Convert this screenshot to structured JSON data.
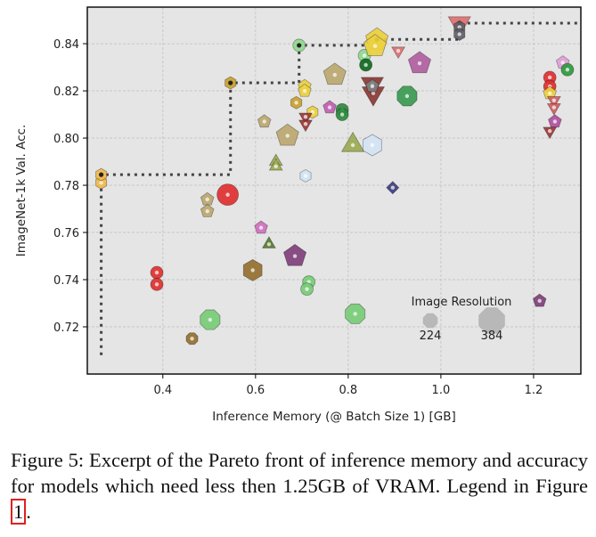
{
  "chart_data": {
    "type": "scatter",
    "xlabel": "Inference Memory (@ Batch Size 1) [GB]",
    "ylabel": "ImageNet-1k Val. Acc.",
    "xlim": [
      0.237,
      1.302
    ],
    "ylim": [
      0.7,
      0.8555
    ],
    "xticks": [
      0.4,
      0.6,
      0.8,
      1.0,
      1.2
    ],
    "xtick_labels": [
      "0.4",
      "0.6",
      "0.8",
      "1.0",
      "1.2"
    ],
    "yticks": [
      0.72,
      0.74,
      0.76,
      0.78,
      0.8,
      0.82,
      0.84
    ],
    "ytick_labels": [
      "0.72",
      "0.74",
      "0.76",
      "0.78",
      "0.80",
      "0.82",
      "0.84"
    ],
    "grid": true,
    "legend": {
      "title": "Image Resolution",
      "entries": [
        "224",
        "384"
      ],
      "placement": "bottom-right"
    },
    "pareto_front": [
      [
        0.267,
        0.708
      ],
      [
        0.267,
        0.7845
      ],
      [
        0.546,
        0.7845
      ],
      [
        0.546,
        0.8234
      ],
      [
        0.694,
        0.8234
      ],
      [
        0.694,
        0.8393
      ],
      [
        0.84,
        0.8393
      ],
      [
        0.84,
        0.8418
      ],
      [
        1.04,
        0.8418
      ],
      [
        1.04,
        0.8487
      ],
      [
        1.302,
        0.8487
      ]
    ],
    "points": [
      {
        "x": 0.267,
        "y": 0.7811,
        "c": "#f0b84a",
        "s": "hex",
        "r": 224
      },
      {
        "x": 0.267,
        "y": 0.7845,
        "c": "#f0b84a",
        "s": "hex",
        "r": 224,
        "p": 1
      },
      {
        "x": 0.546,
        "y": 0.8234,
        "c": "#c9a030",
        "s": "hex",
        "r": 224,
        "p": 1
      },
      {
        "x": 0.694,
        "y": 0.8393,
        "c": "#8fd88f",
        "s": "circle",
        "r": 224,
        "p": 1
      },
      {
        "x": 0.771,
        "y": 0.8268,
        "c": "#bca870",
        "s": "pent",
        "r": 384
      },
      {
        "x": 0.706,
        "y": 0.822,
        "c": "#ecd040",
        "s": "pent",
        "r": 224
      },
      {
        "x": 0.706,
        "y": 0.82,
        "c": "#ecd040",
        "s": "pent",
        "r": 224
      },
      {
        "x": 0.688,
        "y": 0.815,
        "c": "#c9a030",
        "s": "hex",
        "r": 224
      },
      {
        "x": 0.723,
        "y": 0.811,
        "c": "#ecd040",
        "s": "hex",
        "r": 224
      },
      {
        "x": 0.708,
        "y": 0.809,
        "c": "#9b3a38",
        "s": "tridown",
        "r": 224
      },
      {
        "x": 0.708,
        "y": 0.806,
        "c": "#9b3a38",
        "s": "tridown",
        "r": 224
      },
      {
        "x": 0.76,
        "y": 0.813,
        "c": "#c060b0",
        "s": "pent",
        "r": 224
      },
      {
        "x": 0.787,
        "y": 0.812,
        "c": "#2e8a3e",
        "s": "circle",
        "r": 224
      },
      {
        "x": 0.787,
        "y": 0.81,
        "c": "#2e8a3e",
        "s": "circle",
        "r": 224
      },
      {
        "x": 0.619,
        "y": 0.807,
        "c": "#bca870",
        "s": "pent",
        "r": 224
      },
      {
        "x": 0.669,
        "y": 0.801,
        "c": "#bca870",
        "s": "pent",
        "r": 384
      },
      {
        "x": 0.644,
        "y": 0.79,
        "c": "#9aaa50",
        "s": "tri",
        "r": 224
      },
      {
        "x": 0.644,
        "y": 0.788,
        "c": "#9aaa50",
        "s": "tri",
        "r": 224
      },
      {
        "x": 0.81,
        "y": 0.797,
        "c": "#9aaa50",
        "s": "tri",
        "r": 384
      },
      {
        "x": 0.852,
        "y": 0.797,
        "c": "#d4e4f4",
        "s": "hex",
        "r": 384
      },
      {
        "x": 0.708,
        "y": 0.784,
        "c": "#d4e4f4",
        "s": "hex",
        "r": 224
      },
      {
        "x": 0.835,
        "y": 0.835,
        "c": "#8fd88f",
        "s": "circle",
        "r": 224
      },
      {
        "x": 0.838,
        "y": 0.831,
        "c": "#0e6a1e",
        "s": "circle",
        "r": 224
      },
      {
        "x": 0.862,
        "y": 0.8418,
        "c": "#ecd040",
        "s": "pent",
        "r": 384,
        "p": 1
      },
      {
        "x": 0.858,
        "y": 0.839,
        "c": "#ecd040",
        "s": "pent",
        "r": 384
      },
      {
        "x": 0.908,
        "y": 0.837,
        "c": "#e07070",
        "s": "tridown",
        "r": 224
      },
      {
        "x": 0.954,
        "y": 0.8317,
        "c": "#b060a0",
        "s": "pent",
        "r": 384
      },
      {
        "x": 0.852,
        "y": 0.823,
        "c": "#8b3a35",
        "s": "tridown",
        "r": 384
      },
      {
        "x": 0.854,
        "y": 0.819,
        "c": "#8b3a35",
        "s": "tridown",
        "r": 384
      },
      {
        "x": 0.852,
        "y": 0.822,
        "c": "#808080",
        "s": "pent",
        "r": 224
      },
      {
        "x": 0.927,
        "y": 0.8178,
        "c": "#3a9a50",
        "s": "oct",
        "r": 384
      },
      {
        "x": 1.04,
        "y": 0.8487,
        "c": "#e07070",
        "s": "tridown",
        "r": 384,
        "p": 1
      },
      {
        "x": 1.04,
        "y": 0.847,
        "c": "#606068",
        "s": "hex",
        "r": 224
      },
      {
        "x": 1.04,
        "y": 0.844,
        "c": "#606068",
        "s": "hex",
        "r": 224
      },
      {
        "x": 0.896,
        "y": 0.779,
        "c": "#3e3e80",
        "s": "diamond",
        "r": 224
      },
      {
        "x": 0.54,
        "y": 0.776,
        "c": "#e03030",
        "s": "circle",
        "r": 384
      },
      {
        "x": 0.496,
        "y": 0.774,
        "c": "#bca870",
        "s": "pent",
        "r": 224
      },
      {
        "x": 0.496,
        "y": 0.769,
        "c": "#bca870",
        "s": "pent",
        "r": 224
      },
      {
        "x": 0.612,
        "y": 0.762,
        "c": "#d070c0",
        "s": "pent",
        "r": 224
      },
      {
        "x": 0.629,
        "y": 0.755,
        "c": "#5a7a30",
        "s": "tri",
        "r": 224
      },
      {
        "x": 0.685,
        "y": 0.75,
        "c": "#80407a",
        "s": "pent",
        "r": 384
      },
      {
        "x": 0.594,
        "y": 0.744,
        "c": "#957030",
        "s": "hex",
        "r": 384
      },
      {
        "x": 0.387,
        "y": 0.743,
        "c": "#e03030",
        "s": "circle",
        "r": 224
      },
      {
        "x": 0.387,
        "y": 0.738,
        "c": "#e03030",
        "s": "circle",
        "r": 224
      },
      {
        "x": 0.715,
        "y": 0.739,
        "c": "#78cc78",
        "s": "circle",
        "r": 224
      },
      {
        "x": 0.711,
        "y": 0.736,
        "c": "#78cc78",
        "s": "circle",
        "r": 224
      },
      {
        "x": 0.502,
        "y": 0.723,
        "c": "#78cc78",
        "s": "oct",
        "r": 384
      },
      {
        "x": 0.463,
        "y": 0.715,
        "c": "#957030",
        "s": "oct",
        "r": 224
      },
      {
        "x": 0.815,
        "y": 0.7255,
        "c": "#78cc78",
        "s": "oct",
        "r": 384
      },
      {
        "x": 1.213,
        "y": 0.731,
        "c": "#80407a",
        "s": "pent",
        "r": 224
      },
      {
        "x": 1.235,
        "y": 0.8257,
        "c": "#e03030",
        "s": "circle",
        "r": 224
      },
      {
        "x": 1.235,
        "y": 0.8219,
        "c": "#e03030",
        "s": "circle",
        "r": 224
      },
      {
        "x": 1.235,
        "y": 0.819,
        "c": "#ecd040",
        "s": "pent",
        "r": 224
      },
      {
        "x": 1.244,
        "y": 0.816,
        "c": "#d06060",
        "s": "tridown",
        "r": 224
      },
      {
        "x": 1.244,
        "y": 0.813,
        "c": "#d06060",
        "s": "tridown",
        "r": 224
      },
      {
        "x": 1.246,
        "y": 0.807,
        "c": "#b050a0",
        "s": "pent",
        "r": 224
      },
      {
        "x": 1.235,
        "y": 0.803,
        "c": "#9b3a38",
        "s": "tridown",
        "r": 224
      },
      {
        "x": 1.263,
        "y": 0.832,
        "c": "#e0a0d8",
        "s": "pent",
        "r": 224
      },
      {
        "x": 1.273,
        "y": 0.829,
        "c": "#2e9a40",
        "s": "circle",
        "r": 224
      }
    ]
  },
  "caption": {
    "text": "Figure 5: Excerpt of the Pareto front of inference memory and accuracy for models which need less then 1.25GB of VRAM. Legend in Figure ",
    "ref": "1",
    "end": "."
  }
}
